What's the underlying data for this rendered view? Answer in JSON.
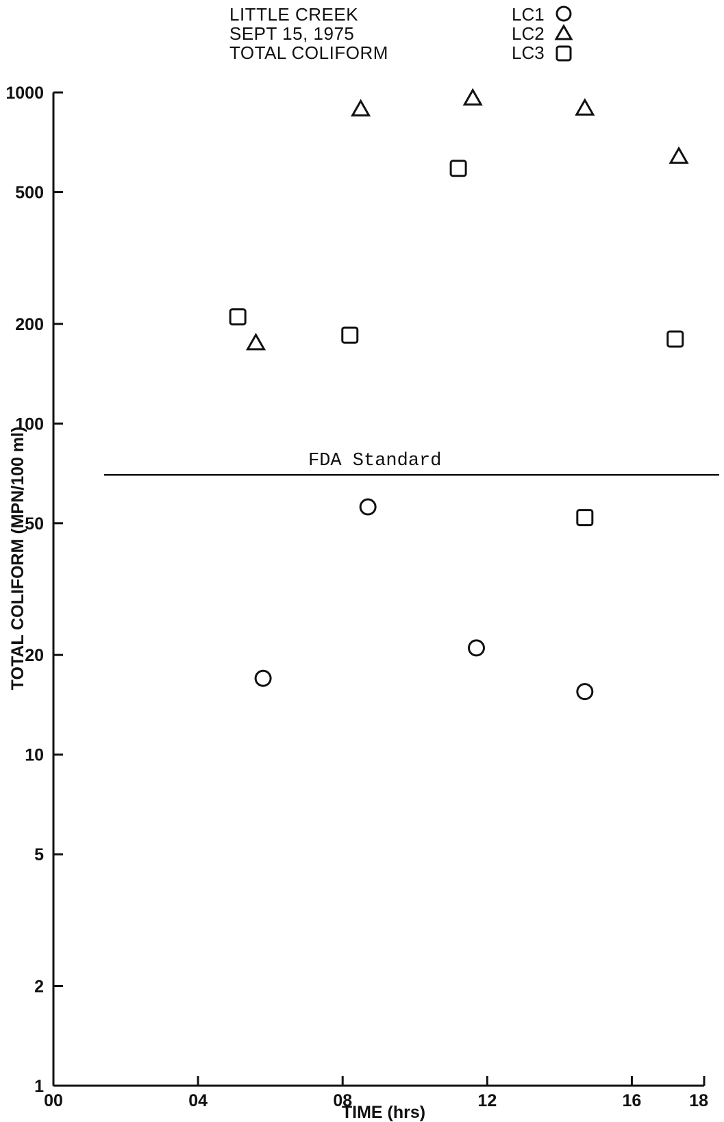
{
  "chart_data": {
    "type": "scatter",
    "title_lines": [
      "LITTLE CREEK",
      "SEPT 15, 1975",
      "TOTAL COLIFORM"
    ],
    "xlabel": "TIME (hrs)",
    "ylabel": "TOTAL COLIFORM (MPN/100 ml)",
    "x_scale": "linear",
    "y_scale": "log",
    "xlim": [
      0,
      18
    ],
    "ylim": [
      1,
      1000
    ],
    "x_ticks": [
      {
        "value": 0,
        "label": "00"
      },
      {
        "value": 4,
        "label": "04"
      },
      {
        "value": 8,
        "label": "08"
      },
      {
        "value": 12,
        "label": "12"
      },
      {
        "value": 16,
        "label": "16"
      },
      {
        "value": 18,
        "label": "18"
      }
    ],
    "y_ticks": [
      {
        "value": 1,
        "label": "1"
      },
      {
        "value": 2,
        "label": "2"
      },
      {
        "value": 5,
        "label": "5"
      },
      {
        "value": 10,
        "label": "10"
      },
      {
        "value": 20,
        "label": "20"
      },
      {
        "value": 50,
        "label": "50"
      },
      {
        "value": 100,
        "label": "100"
      },
      {
        "value": 200,
        "label": "200"
      },
      {
        "value": 500,
        "label": "500"
      },
      {
        "value": 1000,
        "label": "1000"
      }
    ],
    "grid": false,
    "legend_position": "top-right",
    "reference_line": {
      "label": "FDA Standard",
      "y": 70,
      "x_start": 1.4,
      "x_end": 20.5
    },
    "series": [
      {
        "name": "LC1",
        "marker": "circle",
        "points": [
          {
            "x": 5.8,
            "y": 17
          },
          {
            "x": 8.7,
            "y": 56
          },
          {
            "x": 11.7,
            "y": 21
          },
          {
            "x": 14.7,
            "y": 15.5
          }
        ]
      },
      {
        "name": "LC2",
        "marker": "triangle",
        "points": [
          {
            "x": 5.6,
            "y": 175
          },
          {
            "x": 8.5,
            "y": 890
          },
          {
            "x": 11.6,
            "y": 960
          },
          {
            "x": 14.7,
            "y": 895
          },
          {
            "x": 17.3,
            "y": 640
          }
        ]
      },
      {
        "name": "LC3",
        "marker": "square",
        "points": [
          {
            "x": 5.1,
            "y": 210
          },
          {
            "x": 8.2,
            "y": 185
          },
          {
            "x": 11.2,
            "y": 590
          },
          {
            "x": 14.7,
            "y": 52
          },
          {
            "x": 17.2,
            "y": 180
          }
        ]
      }
    ]
  }
}
